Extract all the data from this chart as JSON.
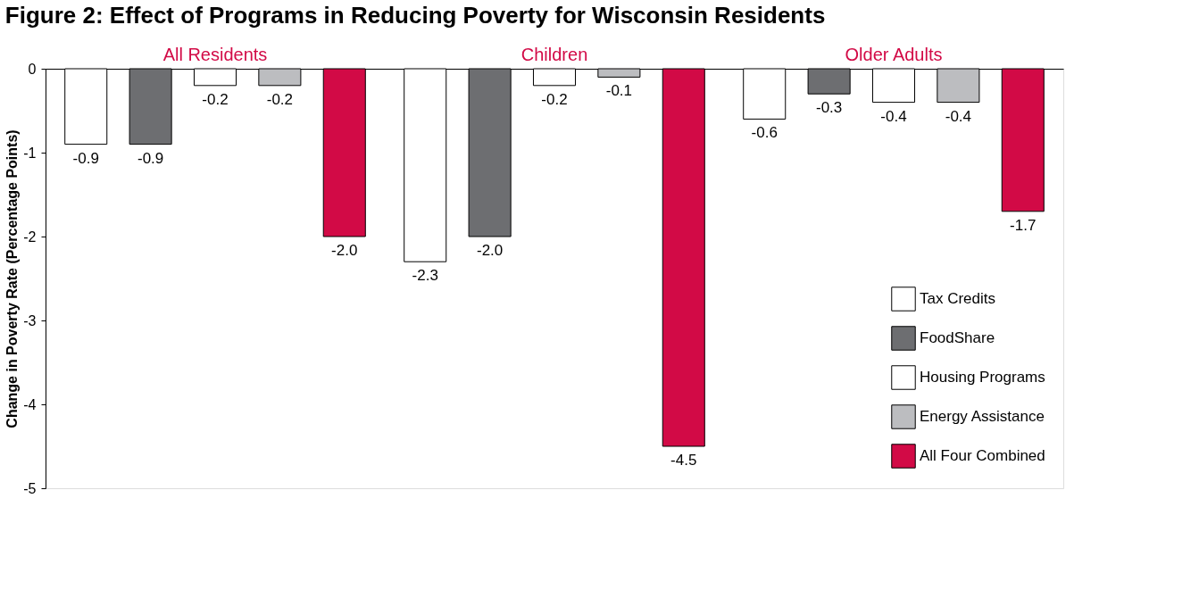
{
  "chart_data": {
    "type": "bar",
    "title": "Figure 2: Effect of Programs in Reducing Poverty for Wisconsin Residents",
    "ylabel": "Change in Poverty Rate (Percentage Points)",
    "categories": [
      "All Residents",
      "Children",
      "Older Adults"
    ],
    "series": [
      {
        "name": "Tax Credits",
        "color": "#ffffff",
        "values": [
          -0.9,
          -2.3,
          -0.6
        ],
        "value_labels": [
          "-0.9",
          "-2.3",
          "-0.6"
        ]
      },
      {
        "name": "FoodShare",
        "color": "#6d6e71",
        "values": [
          -0.9,
          -2.0,
          -0.3
        ],
        "value_labels": [
          "-0.9",
          "-2.0",
          "-0.3"
        ]
      },
      {
        "name": "Housing Programs",
        "color": "#ffffff",
        "values": [
          -0.2,
          -0.2,
          -0.4
        ],
        "value_labels": [
          "-0.2",
          "-0.2",
          "-0.4"
        ]
      },
      {
        "name": "Energy Assistance",
        "color": "#bcbdc0",
        "values": [
          -0.2,
          -0.1,
          -0.4
        ],
        "value_labels": [
          "-0.2",
          "-0.1",
          "-0.4"
        ]
      },
      {
        "name": "All Four Combined",
        "color": "#d20a46",
        "values": [
          -2.0,
          -4.5,
          -1.7
        ],
        "value_labels": [
          "-2.0",
          "-4.5",
          "-1.7"
        ]
      }
    ],
    "ylim": [
      -5,
      0
    ],
    "yticks": [
      0,
      -1,
      -2,
      -3,
      -4,
      -5
    ],
    "grid": false,
    "legend": "bottom right"
  }
}
